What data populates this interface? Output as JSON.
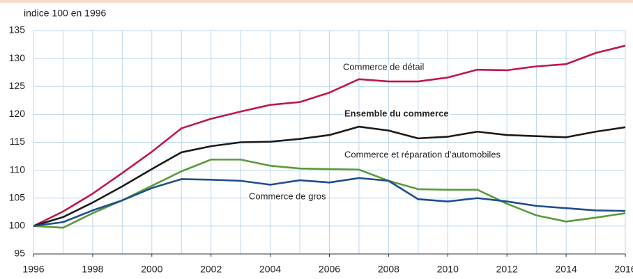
{
  "chart_data": {
    "type": "line",
    "y_axis_label": "indice 100  en 1996",
    "x": [
      1996,
      1997,
      1998,
      1999,
      2000,
      2001,
      2002,
      2003,
      2004,
      2005,
      2006,
      2007,
      2008,
      2009,
      2010,
      2011,
      2012,
      2013,
      2014,
      2015,
      2016
    ],
    "xlim": [
      1996,
      2016
    ],
    "xticks": [
      1996,
      1998,
      2000,
      2002,
      2004,
      2006,
      2008,
      2010,
      2012,
      2014,
      2016
    ],
    "ylim": [
      95,
      135
    ],
    "yticks": [
      95,
      100,
      105,
      110,
      115,
      120,
      125,
      130,
      135
    ],
    "grid": true,
    "series": [
      {
        "name": "Commerce de détail",
        "color": "#c0174a",
        "values": [
          100,
          102.6,
          105.8,
          109.5,
          113.3,
          117.5,
          119.2,
          120.5,
          121.7,
          122.2,
          123.9,
          126.3,
          125.9,
          125.9,
          126.6,
          128.0,
          127.9,
          128.6,
          129.0,
          131.0,
          132.3
        ]
      },
      {
        "name": "Ensemble du commerce",
        "color": "#1a1a1a",
        "values": [
          100,
          101.6,
          104.2,
          107.1,
          110.2,
          113.2,
          114.3,
          115.0,
          115.1,
          115.6,
          116.3,
          117.8,
          117.1,
          115.7,
          116.0,
          116.9,
          116.3,
          116.1,
          115.9,
          116.9,
          117.7
        ]
      },
      {
        "name": "Commerce et réparation d’automobiles",
        "color": "#5a9a3a",
        "values": [
          100,
          99.7,
          102.3,
          104.6,
          107.2,
          109.8,
          111.9,
          111.9,
          110.8,
          110.3,
          110.2,
          110.1,
          108.1,
          106.6,
          106.5,
          106.5,
          104.0,
          101.9,
          100.8,
          101.5,
          102.3
        ]
      },
      {
        "name": "Commerce de gros",
        "color": "#1f4e8c",
        "values": [
          100,
          100.7,
          102.8,
          104.6,
          106.8,
          108.4,
          108.3,
          108.1,
          107.4,
          108.2,
          107.8,
          108.6,
          108.1,
          104.8,
          104.4,
          105.0,
          104.4,
          103.6,
          103.2,
          102.8,
          102.7
        ]
      }
    ]
  }
}
